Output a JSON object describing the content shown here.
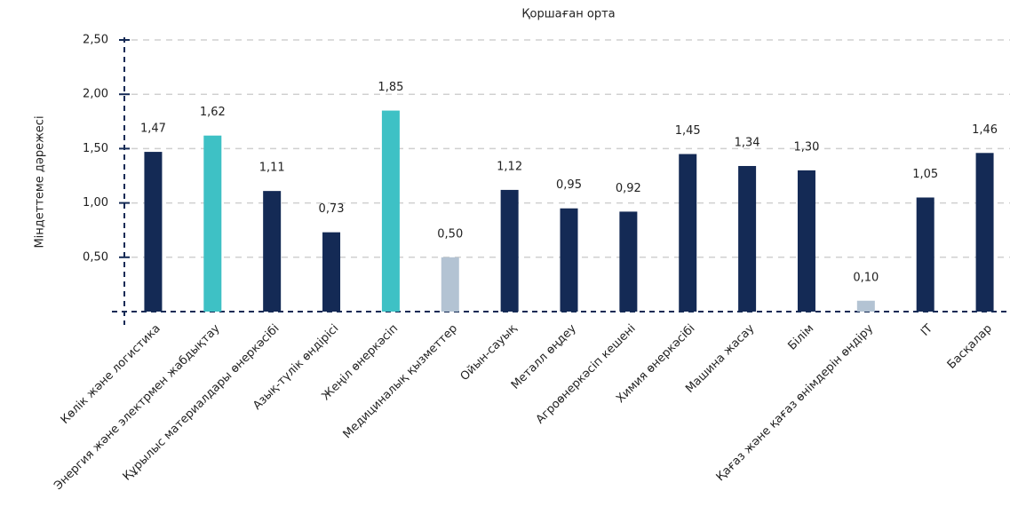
{
  "chart_data": {
    "type": "bar",
    "title": "Қоршаған орта",
    "y_label": "Міндеттеме дәрежесі",
    "categories": [
      "Көлік және логистика",
      "Энергия және электрмен жабдықтау",
      "Құрылыс материалдары өнеркәсібі",
      "Азық-түлік өндірісі",
      "Жеңіл өнеркәсіп",
      "Медициналық қызметтер",
      "Ойын-сауық",
      "Металл өңдеу",
      "Агроөнеркәсіп кешені",
      "Химия өнеркәсібі",
      "Машина жасау",
      "Білім",
      "Қағаз және қағаз өнімдерін өндіру",
      "IT",
      "Басқалар"
    ],
    "values": [
      1.47,
      1.62,
      1.11,
      0.73,
      1.85,
      0.5,
      1.12,
      0.95,
      0.92,
      1.45,
      1.34,
      1.3,
      0.1,
      1.05,
      1.46
    ],
    "value_labels": [
      "1,47",
      "1,62",
      "1,11",
      "0,73",
      "1,85",
      "0,50",
      "1,12",
      "0,95",
      "0,92",
      "1,45",
      "1,34",
      "1,30",
      "0,10",
      "1,05",
      "1,46"
    ],
    "colors": [
      "#142a55",
      "#3ec1c5",
      "#142a55",
      "#142a55",
      "#3ec1c5",
      "#b3c3d3",
      "#142a55",
      "#142a55",
      "#142a55",
      "#142a55",
      "#142a55",
      "#142a55",
      "#b3c3d3",
      "#142a55",
      "#142a55"
    ],
    "ylim": [
      0,
      2.5
    ],
    "yticks": [
      {
        "value": 0.5,
        "label": "0,50"
      },
      {
        "value": 1,
        "label": "1,00"
      },
      {
        "value": 1.5,
        "label": "1,50"
      },
      {
        "value": 2,
        "label": "2,00"
      },
      {
        "value": 2.5,
        "label": "2,50"
      }
    ],
    "grid": true
  }
}
